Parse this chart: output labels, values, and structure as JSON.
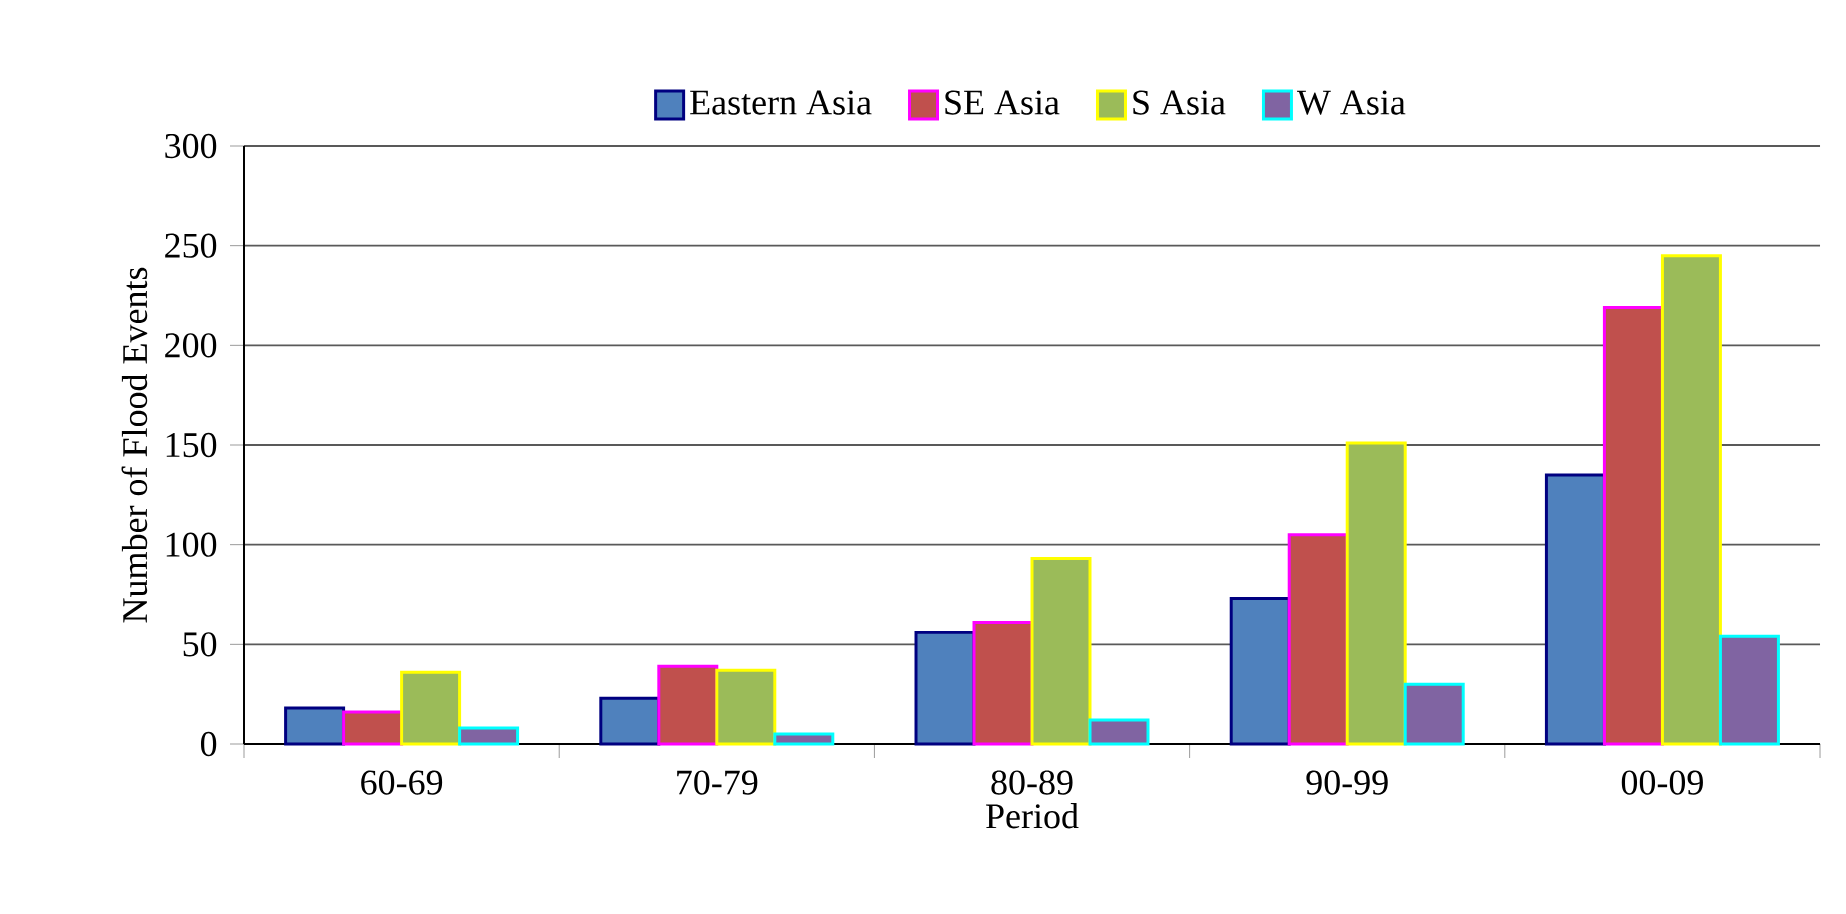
{
  "chart_data": {
    "type": "bar",
    "xlabel": "Period",
    "ylabel": "Number of Flood Events",
    "categories": [
      "60-69",
      "70-79",
      "80-89",
      "90-99",
      "00-09"
    ],
    "series": [
      {
        "name": "Eastern Asia",
        "color": "#4f81bd",
        "values": [
          18,
          23,
          56,
          73,
          135
        ]
      },
      {
        "name": "SE Asia",
        "color": "#c0504d",
        "values": [
          16,
          39,
          61,
          105,
          219
        ]
      },
      {
        "name": "S Asia",
        "color": "#9bbb59",
        "values": [
          36,
          37,
          93,
          151,
          245
        ]
      },
      {
        "name": "W Asia",
        "color": "#8064a2",
        "values": [
          8,
          5,
          12,
          30,
          54
        ]
      }
    ],
    "ylim": [
      0,
      300
    ],
    "yticks": [
      0,
      50,
      100,
      150,
      200,
      250,
      300
    ],
    "grid": "y",
    "legend": "top"
  }
}
